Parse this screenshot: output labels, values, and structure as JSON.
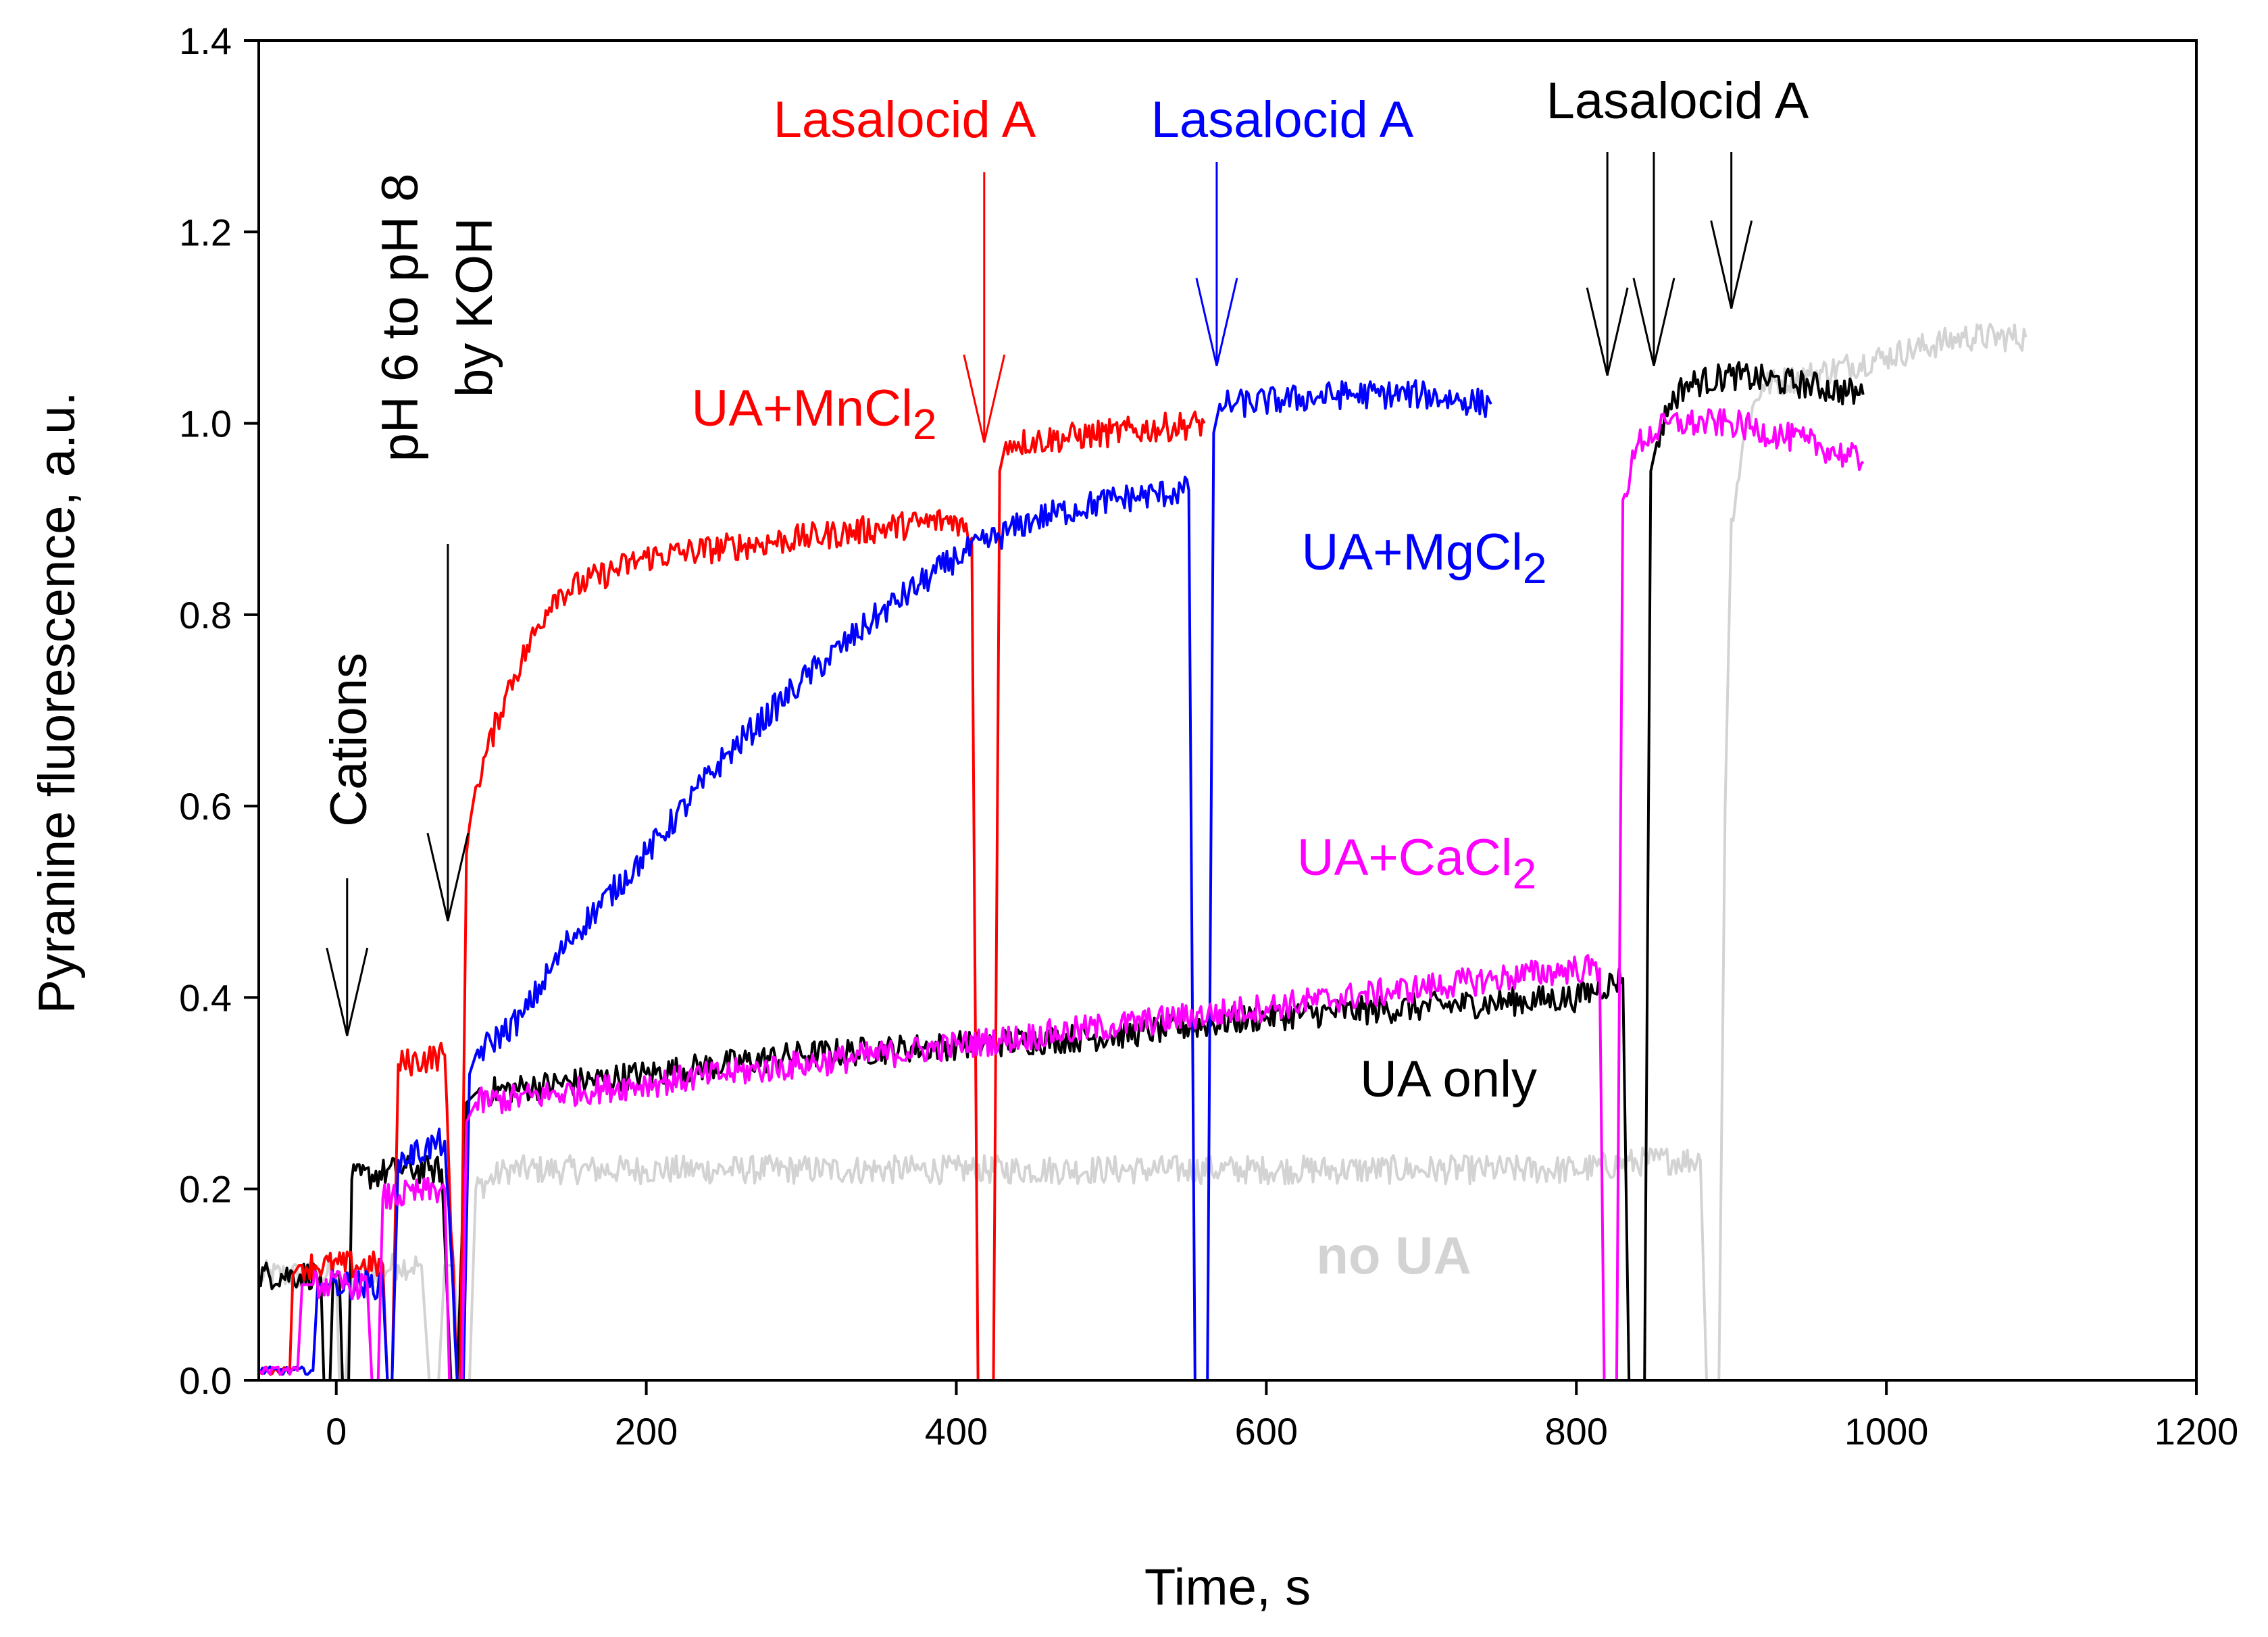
{
  "chart_data": {
    "type": "line",
    "title": "",
    "xlabel": "Time, s",
    "ylabel": "Pyranine fluorescence, a.u.",
    "xlim": [
      -50,
      1200
    ],
    "ylim": [
      0.0,
      1.4
    ],
    "x_ticks": [
      0,
      200,
      400,
      600,
      800,
      1000,
      1200
    ],
    "y_ticks": [
      0.0,
      0.2,
      0.4,
      0.6,
      0.8,
      1.0,
      1.2,
      1.4
    ],
    "x_tick_labels": [
      "0",
      "200",
      "400",
      "600",
      "800",
      "1000",
      "1200"
    ],
    "y_tick_labels": [
      "0.0",
      "0.2",
      "0.4",
      "0.6",
      "0.8",
      "1.0",
      "1.2",
      "1.4"
    ],
    "grid": false,
    "series": [
      {
        "name": "no UA",
        "color": "#d3d3d3",
        "x": [
          -50,
          0,
          2,
          6,
          10,
          14,
          40,
          55,
          60,
          66,
          70,
          76,
          80,
          86,
          90,
          110,
          200,
          300,
          400,
          500,
          600,
          700,
          800,
          850,
          880,
          884,
          888,
          892,
          896,
          900,
          910,
          920,
          950,
          1000,
          1050,
          1090
        ],
        "y": [
          0.11,
          0.11,
          0.0,
          0.0,
          0.11,
          0.11,
          0.12,
          0.12,
          0.0,
          0.0,
          0.12,
          0.12,
          0.0,
          0.0,
          0.2,
          0.22,
          0.22,
          0.22,
          0.22,
          0.22,
          0.22,
          0.22,
          0.22,
          0.23,
          0.23,
          0.0,
          0.0,
          0.0,
          0.6,
          0.9,
          1.0,
          1.04,
          1.05,
          1.07,
          1.09,
          1.09
        ]
      },
      {
        "name": "UA only",
        "color": "#000000",
        "x": [
          -50,
          -10,
          -8,
          -4,
          -2,
          2,
          4,
          8,
          10,
          40,
          60,
          68,
          74,
          78,
          84,
          90,
          200,
          300,
          400,
          500,
          600,
          700,
          800,
          830,
          834,
          838,
          844,
          848,
          852,
          860,
          870,
          900,
          950,
          985
        ],
        "y": [
          0.11,
          0.11,
          0.0,
          0.0,
          0.11,
          0.11,
          0.0,
          0.0,
          0.21,
          0.22,
          0.22,
          0.22,
          0.0,
          0.0,
          0.29,
          0.3,
          0.32,
          0.34,
          0.35,
          0.36,
          0.38,
          0.39,
          0.4,
          0.42,
          0.0,
          0.0,
          0.0,
          0.95,
          0.98,
          1.02,
          1.04,
          1.05,
          1.04,
          1.03
        ]
      },
      {
        "name": "UA+MnCl2",
        "color": "#ff0000",
        "x": [
          -50,
          -30,
          -28,
          -24,
          -22,
          30,
          33,
          36,
          40,
          70,
          78,
          80,
          84,
          86,
          90,
          110,
          140,
          200,
          300,
          400,
          410,
          414,
          420,
          424,
          428,
          432,
          440,
          500,
          560
        ],
        "y": [
          0.01,
          0.01,
          0.11,
          0.12,
          0.12,
          0.12,
          0.0,
          0.0,
          0.33,
          0.34,
          0.0,
          0.0,
          0.55,
          0.58,
          0.62,
          0.72,
          0.82,
          0.86,
          0.88,
          0.9,
          0.88,
          0.0,
          0.0,
          0.0,
          0.95,
          0.98,
          0.98,
          0.99,
          1.0
        ]
      },
      {
        "name": "UA+MgCl2",
        "color": "#0000ff",
        "x": [
          -50,
          -15,
          -12,
          -8,
          -5,
          30,
          33,
          36,
          40,
          70,
          78,
          82,
          86,
          90,
          120,
          150,
          200,
          250,
          300,
          350,
          400,
          450,
          500,
          550,
          554,
          558,
          562,
          566,
          570,
          580,
          650,
          700,
          745
        ],
        "y": [
          0.01,
          0.01,
          0.1,
          0.1,
          0.1,
          0.1,
          0.0,
          0.0,
          0.23,
          0.25,
          0.0,
          0.0,
          0.32,
          0.34,
          0.38,
          0.46,
          0.55,
          0.65,
          0.73,
          0.8,
          0.86,
          0.9,
          0.92,
          0.93,
          0.0,
          0.0,
          0.0,
          0.99,
          1.02,
          1.02,
          1.03,
          1.03,
          1.02
        ]
      },
      {
        "name": "UA+CaCl2",
        "color": "#ff00ff",
        "x": [
          -50,
          -25,
          -22,
          -18,
          -15,
          20,
          23,
          27,
          30,
          70,
          73,
          77,
          81,
          84,
          90,
          200,
          300,
          400,
          500,
          600,
          700,
          800,
          815,
          818,
          822,
          826,
          830,
          840,
          860,
          900,
          950,
          985
        ],
        "y": [
          0.01,
          0.01,
          0.1,
          0.1,
          0.1,
          0.1,
          0.0,
          0.0,
          0.19,
          0.2,
          0.0,
          0.0,
          0.0,
          0.27,
          0.29,
          0.31,
          0.33,
          0.35,
          0.37,
          0.39,
          0.41,
          0.43,
          0.43,
          0.0,
          0.0,
          0.0,
          0.92,
          0.98,
          1.0,
          1.0,
          0.98,
          0.96
        ]
      }
    ],
    "annotations": [
      {
        "id": "cations",
        "text": "Cations",
        "color": "#000000",
        "rotated": true,
        "arrow_x": 7,
        "arrow_y": 0.36
      },
      {
        "id": "ph",
        "line1": "pH 6 to pH 8",
        "line2": "by KOH",
        "color": "#000000",
        "rotated": true,
        "arrow_x": 72,
        "arrow_y": 0.48
      },
      {
        "id": "lasa-red",
        "text": "Lasalocid A",
        "color": "#ff0000",
        "arrow_x": 418,
        "arrow_y": 0.98
      },
      {
        "id": "lasa-blue",
        "text": "Lasalocid A",
        "color": "#0000ff",
        "arrow_x": 568,
        "arrow_y": 1.06
      },
      {
        "id": "lasa-black",
        "text": "Lasalocid A",
        "color": "#000000",
        "arrows_x": [
          820,
          850,
          900
        ],
        "arrows_y": [
          1.05,
          1.06,
          1.12
        ]
      },
      {
        "id": "ua-mn",
        "base": "UA+MnCl",
        "sub": "2",
        "color": "#ff0000"
      },
      {
        "id": "ua-mg",
        "base": "UA+MgCl",
        "sub": "2",
        "color": "#0000ff"
      },
      {
        "id": "ua-ca",
        "base": "UA+CaCl",
        "sub": "2",
        "color": "#ff00ff"
      },
      {
        "id": "ua-only",
        "text": "UA only",
        "color": "#000000"
      },
      {
        "id": "no-ua",
        "text": "no UA",
        "color": "#d3d3d3",
        "bold": true
      }
    ]
  }
}
